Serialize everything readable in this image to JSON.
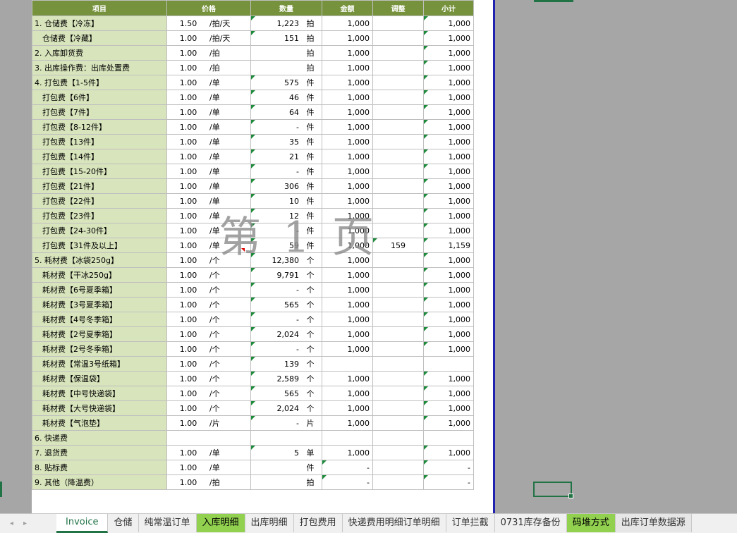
{
  "headers": [
    "项目",
    "价格",
    "数量",
    "金额",
    "调整",
    "小计"
  ],
  "rows": [
    {
      "item": "1. 仓储费【冷冻】",
      "price": "1.50",
      "unit": "/拍/天",
      "qty": "1,223",
      "qunit": "拍",
      "amount": "1,000",
      "adj": "",
      "subtotal": "1,000"
    },
    {
      "item": "仓储费【冷藏】",
      "price": "1.00",
      "unit": "/拍/天",
      "qty": "151",
      "qunit": "拍",
      "amount": "1,000",
      "adj": "",
      "subtotal": "1,000"
    },
    {
      "item": "2. 入库卸货费",
      "price": "1.00",
      "unit": "/拍",
      "qty": "",
      "qunit": "拍",
      "amount": "1,000",
      "adj": "",
      "subtotal": "1,000"
    },
    {
      "item": "3. 出库操作费：出库处置费",
      "price": "1.00",
      "unit": "/拍",
      "qty": "",
      "qunit": "拍",
      "amount": "1,000",
      "adj": "",
      "subtotal": "1,000"
    },
    {
      "item": "4. 打包费【1-5件】",
      "price": "1.00",
      "unit": "/单",
      "qty": "575",
      "qunit": "件",
      "amount": "1,000",
      "adj": "",
      "subtotal": "1,000"
    },
    {
      "item": "打包费【6件】",
      "price": "1.00",
      "unit": "/单",
      "qty": "46",
      "qunit": "件",
      "amount": "1,000",
      "adj": "",
      "subtotal": "1,000"
    },
    {
      "item": "打包费【7件】",
      "price": "1.00",
      "unit": "/单",
      "qty": "64",
      "qunit": "件",
      "amount": "1,000",
      "adj": "",
      "subtotal": "1,000"
    },
    {
      "item": "打包费【8-12件】",
      "price": "1.00",
      "unit": "/单",
      "qty": "-",
      "qunit": "件",
      "amount": "1,000",
      "adj": "",
      "subtotal": "1,000"
    },
    {
      "item": "打包费【13件】",
      "price": "1.00",
      "unit": "/单",
      "qty": "35",
      "qunit": "件",
      "amount": "1,000",
      "adj": "",
      "subtotal": "1,000"
    },
    {
      "item": "打包费【14件】",
      "price": "1.00",
      "unit": "/单",
      "qty": "21",
      "qunit": "件",
      "amount": "1,000",
      "adj": "",
      "subtotal": "1,000"
    },
    {
      "item": "打包费【15-20件】",
      "price": "1.00",
      "unit": "/单",
      "qty": "-",
      "qunit": "件",
      "amount": "1,000",
      "adj": "",
      "subtotal": "1,000"
    },
    {
      "item": "打包费【21件】",
      "price": "1.00",
      "unit": "/单",
      "qty": "306",
      "qunit": "件",
      "amount": "1,000",
      "adj": "",
      "subtotal": "1,000"
    },
    {
      "item": "打包费【22件】",
      "price": "1.00",
      "unit": "/单",
      "qty": "10",
      "qunit": "件",
      "amount": "1,000",
      "adj": "",
      "subtotal": "1,000"
    },
    {
      "item": "打包费【23件】",
      "price": "1.00",
      "unit": "/单",
      "qty": "12",
      "qunit": "件",
      "amount": "1,000",
      "adj": "",
      "subtotal": "1,000"
    },
    {
      "item": "打包费【24-30件】",
      "price": "1.00",
      "unit": "/单",
      "qty": "-",
      "qunit": "件",
      "amount": "1,000",
      "adj": "",
      "subtotal": "1,000"
    },
    {
      "item": "打包费【31件及以上】",
      "price": "1.00",
      "unit": "/单",
      "qty": "59",
      "qunit": "件",
      "amount": "1,000",
      "adj": "159",
      "subtotal": "1,159"
    },
    {
      "item": "5. 耗材费【冰袋250g】",
      "price": "1.00",
      "unit": "/个",
      "qty": "12,380",
      "qunit": "个",
      "amount": "1,000",
      "adj": "",
      "subtotal": "1,000"
    },
    {
      "item": "耗材费【干冰250g】",
      "price": "1.00",
      "unit": "/个",
      "qty": "9,791",
      "qunit": "个",
      "amount": "1,000",
      "adj": "",
      "subtotal": "1,000"
    },
    {
      "item": "耗材费【6号夏季箱】",
      "price": "1.00",
      "unit": "/个",
      "qty": "-",
      "qunit": "个",
      "amount": "1,000",
      "adj": "",
      "subtotal": "1,000"
    },
    {
      "item": "耗材费【3号夏季箱】",
      "price": "1.00",
      "unit": "/个",
      "qty": "565",
      "qunit": "个",
      "amount": "1,000",
      "adj": "",
      "subtotal": "1,000"
    },
    {
      "item": "耗材费【4号冬季箱】",
      "price": "1.00",
      "unit": "/个",
      "qty": "-",
      "qunit": "个",
      "amount": "1,000",
      "adj": "",
      "subtotal": "1,000"
    },
    {
      "item": "耗材费【2号夏季箱】",
      "price": "1.00",
      "unit": "/个",
      "qty": "2,024",
      "qunit": "个",
      "amount": "1,000",
      "adj": "",
      "subtotal": "1,000"
    },
    {
      "item": "耗材费【2号冬季箱】",
      "price": "1.00",
      "unit": "/个",
      "qty": "-",
      "qunit": "个",
      "amount": "1,000",
      "adj": "",
      "subtotal": "1,000"
    },
    {
      "item": "耗材费【常温3号纸箱】",
      "price": "1.00",
      "unit": "/个",
      "qty": "139",
      "qunit": "个",
      "amount": "",
      "adj": "",
      "subtotal": ""
    },
    {
      "item": "耗材费【保温袋】",
      "price": "1.00",
      "unit": "/个",
      "qty": "2,589",
      "qunit": "个",
      "amount": "1,000",
      "adj": "",
      "subtotal": "1,000"
    },
    {
      "item": "耗材费【中号快递袋】",
      "price": "1.00",
      "unit": "/个",
      "qty": "565",
      "qunit": "个",
      "amount": "1,000",
      "adj": "",
      "subtotal": "1,000"
    },
    {
      "item": "耗材费【大号快递袋】",
      "price": "1.00",
      "unit": "/个",
      "qty": "2,024",
      "qunit": "个",
      "amount": "1,000",
      "adj": "",
      "subtotal": "1,000"
    },
    {
      "item": "耗材费【气泡垫】",
      "price": "1.00",
      "unit": "/片",
      "qty": "-",
      "qunit": "片",
      "amount": "1,000",
      "adj": "",
      "subtotal": "1,000"
    },
    {
      "item": "6. 快递费",
      "price": "",
      "unit": "",
      "qty": "",
      "qunit": "",
      "amount": "",
      "adj": "",
      "subtotal": ""
    },
    {
      "item": "7. 退货费",
      "price": "1.00",
      "unit": "/单",
      "qty": "5",
      "qunit": "单",
      "amount": "1,000",
      "adj": "",
      "subtotal": "1,000"
    },
    {
      "item": "8. 贴标费",
      "price": "1.00",
      "unit": "/单",
      "qty": "",
      "qunit": "件",
      "amount": "-",
      "adj": "",
      "subtotal": "-"
    },
    {
      "item": "9. 其他（降温费）",
      "price": "1.00",
      "unit": "/拍",
      "qty": "",
      "qunit": "拍",
      "amount": "-",
      "adj": "",
      "subtotal": "-"
    }
  ],
  "watermark": "第 1 页",
  "tabs": [
    "Invoice",
    "仓储",
    "纯常温订单",
    "入库明细",
    "出库明细",
    "打包费用",
    "快递费用明细订单明细",
    "订单拦截",
    "0731库存备份",
    "码堆方式",
    "出库订单数据源"
  ],
  "active_tab": "Invoice",
  "green_tabs": [
    "入库明细",
    "码堆方式"
  ],
  "grey_tabs": [
    "出库订单数据源"
  ],
  "colors": {
    "header_bg": "#76923c",
    "item_bg": "#d8e4bc",
    "accent": "#217346",
    "page_border": "#1f1fb0"
  }
}
